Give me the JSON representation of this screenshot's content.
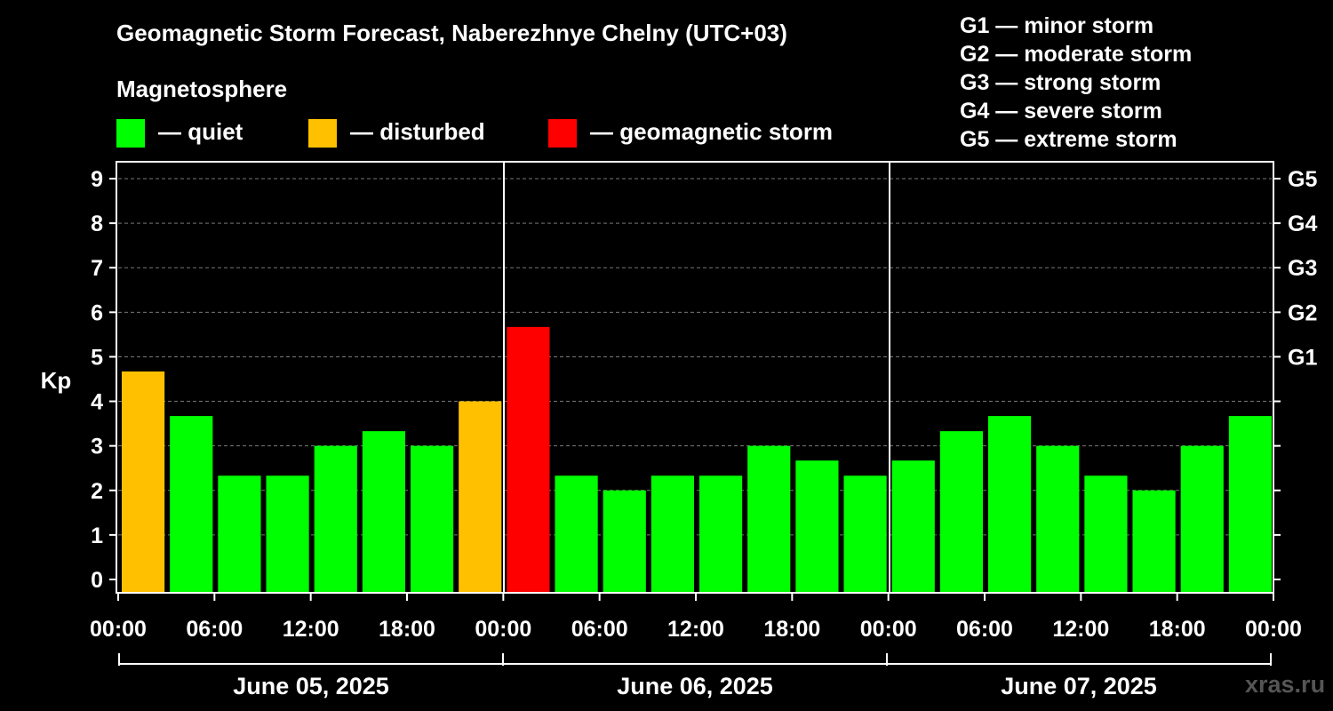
{
  "chart_data": {
    "type": "bar",
    "title": "Geomagnetic Storm Forecast, Naberezhnye Chelny (UTC+03)",
    "ylabel": "Kp",
    "ylim": [
      0,
      9
    ],
    "yticks": [
      "0",
      "1",
      "2",
      "3",
      "4",
      "5",
      "6",
      "7",
      "8",
      "9"
    ],
    "right_axis_labels": [
      {
        "label": "G1",
        "kp": 5
      },
      {
        "label": "G2",
        "kp": 6
      },
      {
        "label": "G3",
        "kp": 7
      },
      {
        "label": "G4",
        "kp": 8
      },
      {
        "label": "G5",
        "kp": 9
      }
    ],
    "x_tick_labels": [
      "00:00",
      "06:00",
      "12:00",
      "18:00",
      "00:00",
      "06:00",
      "12:00",
      "18:00",
      "00:00",
      "06:00",
      "12:00",
      "18:00",
      "00:00"
    ],
    "days": [
      "June 05, 2025",
      "June 06, 2025",
      "June 07, 2025"
    ],
    "interval_hours": 3,
    "values": [
      4.67,
      3.67,
      2.33,
      2.33,
      3.0,
      3.33,
      3.0,
      4.0,
      5.67,
      2.33,
      2.0,
      2.33,
      2.33,
      3.0,
      2.67,
      2.33,
      2.67,
      3.33,
      3.67,
      3.0,
      2.33,
      2.0,
      3.0,
      3.67
    ],
    "status": [
      "disturbed",
      "quiet",
      "quiet",
      "quiet",
      "quiet",
      "quiet",
      "quiet",
      "disturbed",
      "storm",
      "quiet",
      "quiet",
      "quiet",
      "quiet",
      "quiet",
      "quiet",
      "quiet",
      "quiet",
      "quiet",
      "quiet",
      "quiet",
      "quiet",
      "quiet",
      "quiet",
      "quiet"
    ],
    "colors": {
      "quiet": "#00ff00",
      "disturbed": "#ffc000",
      "storm": "#ff0000"
    }
  },
  "legend": {
    "title": "Magnetosphere",
    "quiet": "— quiet",
    "disturbed": "— disturbed",
    "storm": "— geomagnetic storm"
  },
  "storm_scale": [
    "G1 — minor storm",
    "G2 — moderate storm",
    "G3 — strong storm",
    "G4 — severe storm",
    "G5 — extreme storm"
  ],
  "watermark": "xras.ru"
}
